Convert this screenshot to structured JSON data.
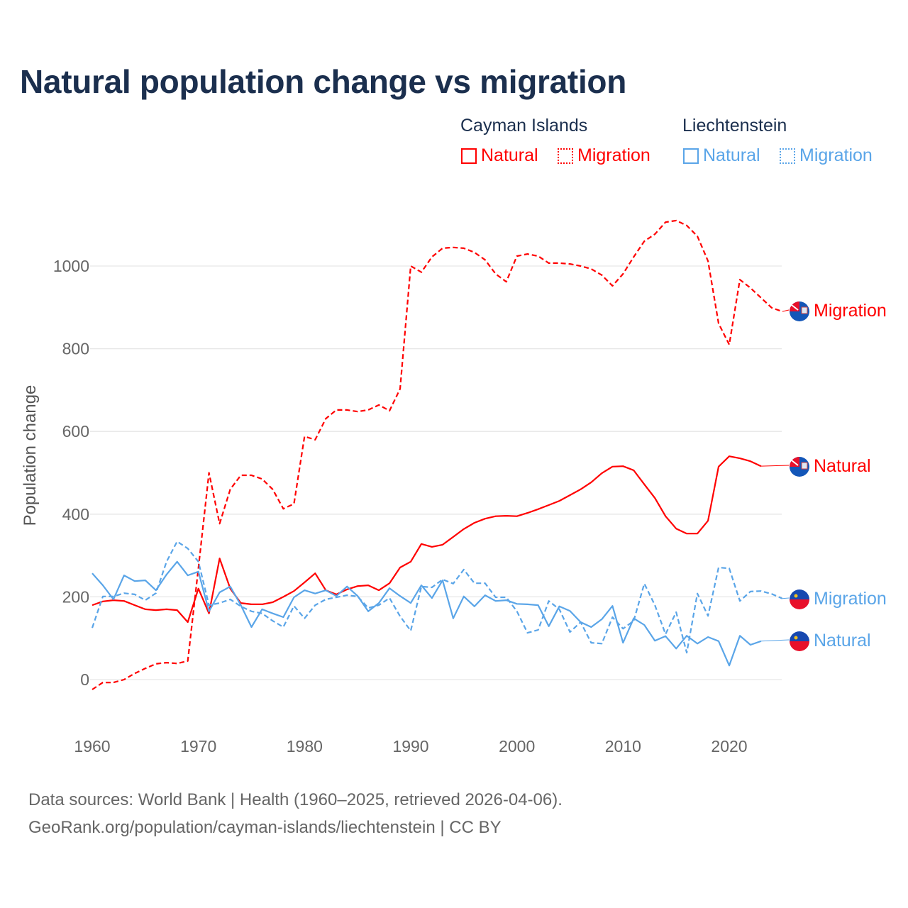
{
  "title": "Natural population change vs migration",
  "legend": {
    "groups": [
      {
        "name": "Cayman Islands",
        "items": [
          "Natural",
          "Migration"
        ],
        "color": "#ff0000"
      },
      {
        "name": "Liechtenstein",
        "items": [
          "Natural",
          "Migration"
        ],
        "color": "#5aa5e8"
      }
    ]
  },
  "footer": {
    "line1": "Data sources: World Bank | Health (1960–2025, retrieved 2026-04-06).",
    "line2": "GeoRank.org/population/cayman-islands/liechtenstein | CC BY"
  },
  "chart_data": {
    "type": "line",
    "title": "Natural population change vs migration",
    "xlabel": "",
    "ylabel": "Population change",
    "xlim": [
      1960,
      2025
    ],
    "ylim": [
      -60,
      1150
    ],
    "xticks": [
      1960,
      1970,
      1980,
      1990,
      2000,
      2010,
      2020
    ],
    "yticks": [
      0,
      200,
      400,
      600,
      800,
      1000
    ],
    "grid": true,
    "legend_placement": "top-right",
    "series": [
      {
        "name": "Natural",
        "country": "Cayman Islands",
        "color": "#ff0000",
        "dash": false,
        "end_label": "Natural",
        "start": 1960,
        "values": [
          180,
          189,
          192,
          190,
          180,
          170,
          168,
          170,
          168,
          139,
          220,
          160,
          293,
          220,
          185,
          182,
          182,
          187,
          200,
          214,
          235,
          257,
          216,
          206,
          218,
          226,
          228,
          216,
          233,
          271,
          285,
          328,
          321,
          326,
          345,
          364,
          379,
          389,
          395,
          396,
          395,
          403,
          412,
          422,
          432,
          446,
          460,
          477,
          499,
          515,
          516,
          506,
          472,
          439,
          395,
          365,
          353,
          353,
          384,
          515,
          540,
          535,
          528,
          516
        ]
      },
      {
        "name": "Migration",
        "country": "Cayman Islands",
        "color": "#ff0000",
        "dash": true,
        "end_label": "Migration",
        "start": 1960,
        "values": [
          -24,
          -7,
          -7,
          0,
          15,
          27,
          38,
          41,
          39,
          45,
          270,
          500,
          377,
          460,
          494,
          494,
          485,
          460,
          413,
          425,
          588,
          580,
          631,
          652,
          652,
          648,
          652,
          664,
          650,
          703,
          1000,
          985,
          1022,
          1043,
          1045,
          1043,
          1033,
          1015,
          981,
          962,
          1024,
          1029,
          1024,
          1007,
          1007,
          1005,
          1000,
          993,
          978,
          952,
          981,
          1022,
          1060,
          1077,
          1106,
          1110,
          1098,
          1072,
          1012,
          861,
          810,
          967,
          947,
          923,
          899,
          890
        ]
      },
      {
        "name": "Natural",
        "country": "Liechtenstein",
        "color": "#5aa5e8",
        "dash": false,
        "end_label": "Natural",
        "start": 1960,
        "values": [
          257,
          228,
          194,
          252,
          238,
          240,
          216,
          254,
          285,
          252,
          261,
          165,
          211,
          225,
          180,
          127,
          170,
          160,
          151,
          199,
          216,
          208,
          216,
          202,
          225,
          202,
          165,
          185,
          221,
          202,
          185,
          228,
          197,
          240,
          148,
          201,
          177,
          204,
          190,
          192,
          183,
          182,
          180,
          129,
          177,
          166,
          139,
          127,
          146,
          178,
          89,
          148,
          132,
          94,
          105,
          75,
          106,
          87,
          103,
          93,
          34,
          106,
          84,
          93
        ]
      },
      {
        "name": "Migration",
        "country": "Liechtenstein",
        "color": "#5aa5e8",
        "dash": true,
        "end_label": "Migration",
        "start": 1960,
        "values": [
          125,
          201,
          201,
          209,
          206,
          192,
          209,
          285,
          334,
          317,
          285,
          180,
          185,
          194,
          177,
          165,
          160,
          142,
          127,
          178,
          148,
          180,
          194,
          199,
          204,
          201,
          173,
          180,
          197,
          153,
          118,
          225,
          223,
          242,
          232,
          266,
          233,
          233,
          199,
          199,
          165,
          113,
          120,
          190,
          170,
          115,
          139,
          89,
          87,
          151,
          123,
          142,
          232,
          180,
          110,
          163,
          65,
          208,
          154,
          271,
          269,
          190,
          213,
          214,
          207,
          196
        ]
      }
    ]
  }
}
